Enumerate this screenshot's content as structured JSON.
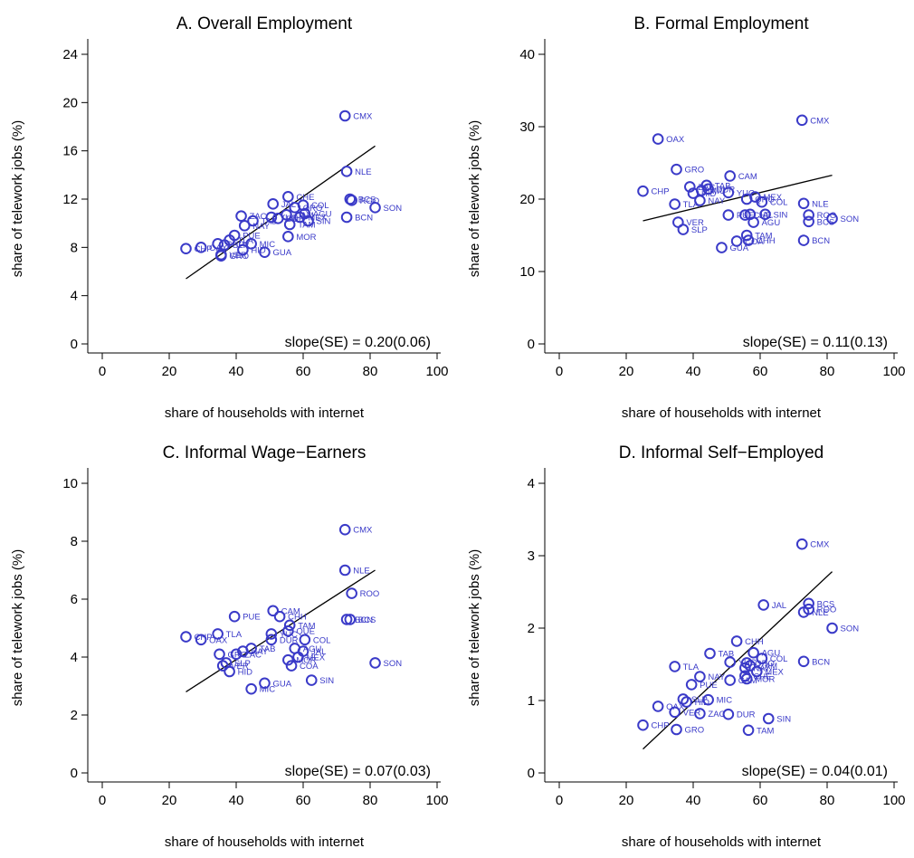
{
  "colors": {
    "marker": "#3a3ac8",
    "line": "#000000",
    "axis": "#000000"
  },
  "x_axis": {
    "label": "share of households with internet",
    "ticks": [
      0,
      20,
      40,
      60,
      80,
      100
    ],
    "lim": [
      0,
      100
    ]
  },
  "y_axis": {
    "label": "share of telework jobs (%)"
  },
  "chart_data": [
    {
      "type": "scatter",
      "title": "A. Overall Employment",
      "ylim": [
        0,
        24
      ],
      "yticks": [
        0,
        4,
        8,
        12,
        16,
        20,
        24
      ],
      "slope_text": "slope(SE) = 0.20(0.06)",
      "fit": {
        "x": [
          25,
          81.5
        ],
        "y": [
          5.4,
          16.4
        ]
      },
      "points": [
        {
          "x": 72.5,
          "y": 18.9,
          "label": "CMX"
        },
        {
          "x": 73.0,
          "y": 14.3,
          "label": "NLE"
        },
        {
          "x": 74.0,
          "y": 12.0,
          "label": "BCS"
        },
        {
          "x": 74.5,
          "y": 11.9,
          "label": "ROO"
        },
        {
          "x": 81.5,
          "y": 11.3,
          "label": "SON"
        },
        {
          "x": 73.0,
          "y": 10.5,
          "label": "BCN"
        },
        {
          "x": 55.5,
          "y": 12.2,
          "label": "CHE"
        },
        {
          "x": 60.0,
          "y": 11.5,
          "label": "COL"
        },
        {
          "x": 51.0,
          "y": 11.6,
          "label": "JAL"
        },
        {
          "x": 57.5,
          "y": 11.3,
          "label": "QRO"
        },
        {
          "x": 60.5,
          "y": 10.8,
          "label": "AGU"
        },
        {
          "x": 59.0,
          "y": 10.5,
          "label": "MEX"
        },
        {
          "x": 56.0,
          "y": 9.9,
          "label": "TAM"
        },
        {
          "x": 61.5,
          "y": 10.2,
          "label": "SIN"
        },
        {
          "x": 55.0,
          "y": 10.7,
          "label": "CAM"
        },
        {
          "x": 52.5,
          "y": 10.4,
          "label": "DUR"
        },
        {
          "x": 50.5,
          "y": 10.5,
          "label": "YUC"
        },
        {
          "x": 41.5,
          "y": 10.6,
          "label": "ZAC"
        },
        {
          "x": 45.0,
          "y": 10.2,
          "label": "TAB"
        },
        {
          "x": 42.5,
          "y": 9.8,
          "label": "NAY"
        },
        {
          "x": 39.5,
          "y": 9.0,
          "label": "PUE"
        },
        {
          "x": 44.5,
          "y": 8.3,
          "label": "MIC"
        },
        {
          "x": 55.5,
          "y": 8.9,
          "label": "MOR"
        },
        {
          "x": 38.0,
          "y": 8.6,
          "label": "TLA"
        },
        {
          "x": 36.5,
          "y": 8.2,
          "label": "SLP"
        },
        {
          "x": 42.0,
          "y": 7.8,
          "label": "HID"
        },
        {
          "x": 34.5,
          "y": 8.3,
          "label": "CHP"
        },
        {
          "x": 35.5,
          "y": 7.4,
          "label": "VER"
        },
        {
          "x": 35.5,
          "y": 7.3,
          "label": "GRO"
        },
        {
          "x": 48.5,
          "y": 7.6,
          "label": "GUA"
        },
        {
          "x": 29.5,
          "y": 8.0,
          "label": "OAX"
        },
        {
          "x": 25.0,
          "y": 7.9,
          "label": "CHP"
        }
      ]
    },
    {
      "type": "scatter",
      "title": "B. Formal Employment",
      "ylim": [
        0,
        40
      ],
      "yticks": [
        0,
        10,
        20,
        30,
        40
      ],
      "slope_text": "slope(SE) = 0.11(0.13)",
      "fit": {
        "x": [
          25,
          81.5
        ],
        "y": [
          17.0,
          23.3
        ]
      },
      "points": [
        {
          "x": 72.5,
          "y": 30.9,
          "label": "CMX"
        },
        {
          "x": 29.5,
          "y": 28.3,
          "label": "OAX"
        },
        {
          "x": 35.0,
          "y": 24.1,
          "label": "GRO"
        },
        {
          "x": 51.0,
          "y": 23.2,
          "label": "CAM"
        },
        {
          "x": 25.0,
          "y": 21.1,
          "label": "CHP"
        },
        {
          "x": 44.0,
          "y": 21.9,
          "label": "TAB"
        },
        {
          "x": 39.0,
          "y": 21.7,
          "label": "ZAC"
        },
        {
          "x": 44.5,
          "y": 21.4,
          "label": "DUR"
        },
        {
          "x": 40.0,
          "y": 20.8,
          "label": "HID"
        },
        {
          "x": 42.5,
          "y": 21.2,
          "label": "MIC"
        },
        {
          "x": 50.5,
          "y": 20.9,
          "label": "YUC"
        },
        {
          "x": 58.5,
          "y": 20.3,
          "label": "MEX"
        },
        {
          "x": 56.0,
          "y": 20.0,
          "label": "QRO"
        },
        {
          "x": 60.5,
          "y": 19.6,
          "label": "COL"
        },
        {
          "x": 34.5,
          "y": 19.3,
          "label": "TLA"
        },
        {
          "x": 42.0,
          "y": 19.8,
          "label": "NAY"
        },
        {
          "x": 73.0,
          "y": 19.4,
          "label": "NLE"
        },
        {
          "x": 74.5,
          "y": 17.8,
          "label": "ROO"
        },
        {
          "x": 81.5,
          "y": 17.3,
          "label": "SON"
        },
        {
          "x": 74.5,
          "y": 16.9,
          "label": "BCS"
        },
        {
          "x": 50.5,
          "y": 17.8,
          "label": "PUE"
        },
        {
          "x": 55.5,
          "y": 17.8,
          "label": "CHE"
        },
        {
          "x": 61.5,
          "y": 17.9,
          "label": "SIN"
        },
        {
          "x": 57.0,
          "y": 17.9,
          "label": "JAL"
        },
        {
          "x": 58.0,
          "y": 16.8,
          "label": "AGU"
        },
        {
          "x": 35.5,
          "y": 16.8,
          "label": "VER"
        },
        {
          "x": 37.0,
          "y": 15.8,
          "label": "SLP"
        },
        {
          "x": 56.0,
          "y": 15.0,
          "label": "TAM"
        },
        {
          "x": 56.5,
          "y": 14.3,
          "label": "CHH"
        },
        {
          "x": 53.0,
          "y": 14.2,
          "label": "COA"
        },
        {
          "x": 73.0,
          "y": 14.3,
          "label": "BCN"
        },
        {
          "x": 48.5,
          "y": 13.3,
          "label": "GUA"
        }
      ]
    },
    {
      "type": "scatter",
      "title": "C. Informal Wage−Earners",
      "ylim": [
        0,
        10
      ],
      "yticks": [
        0,
        2,
        4,
        6,
        8,
        10
      ],
      "slope_text": "slope(SE) = 0.07(0.03)",
      "fit": {
        "x": [
          25,
          81.5
        ],
        "y": [
          2.8,
          7.0
        ]
      },
      "points": [
        {
          "x": 72.5,
          "y": 8.4,
          "label": "CMX"
        },
        {
          "x": 72.5,
          "y": 7.0,
          "label": "NLE"
        },
        {
          "x": 74.5,
          "y": 6.2,
          "label": "ROO"
        },
        {
          "x": 74.0,
          "y": 5.3,
          "label": "BCS"
        },
        {
          "x": 73.0,
          "y": 5.3,
          "label": "BCN"
        },
        {
          "x": 81.5,
          "y": 3.8,
          "label": "SON"
        },
        {
          "x": 51.0,
          "y": 5.6,
          "label": "CAM"
        },
        {
          "x": 53.0,
          "y": 5.4,
          "label": "CHH"
        },
        {
          "x": 39.5,
          "y": 5.4,
          "label": "PUE"
        },
        {
          "x": 56.0,
          "y": 5.1,
          "label": "TAM"
        },
        {
          "x": 55.5,
          "y": 4.9,
          "label": "QUE"
        },
        {
          "x": 50.5,
          "y": 4.8,
          "label": "YUC"
        },
        {
          "x": 34.5,
          "y": 4.8,
          "label": "TLA"
        },
        {
          "x": 25.0,
          "y": 4.7,
          "label": "CHP"
        },
        {
          "x": 29.5,
          "y": 4.6,
          "label": "OAX"
        },
        {
          "x": 60.5,
          "y": 4.6,
          "label": "COL"
        },
        {
          "x": 50.5,
          "y": 4.6,
          "label": "DUR"
        },
        {
          "x": 57.5,
          "y": 4.3,
          "label": "AGU"
        },
        {
          "x": 60.0,
          "y": 4.2,
          "label": "JAL"
        },
        {
          "x": 58.5,
          "y": 4.0,
          "label": "MEX"
        },
        {
          "x": 55.5,
          "y": 3.9,
          "label": "MOR"
        },
        {
          "x": 44.5,
          "y": 4.3,
          "label": "TAB"
        },
        {
          "x": 42.0,
          "y": 4.2,
          "label": "NAY"
        },
        {
          "x": 40.0,
          "y": 4.1,
          "label": "ZAC"
        },
        {
          "x": 35.0,
          "y": 4.1,
          "label": "GRO"
        },
        {
          "x": 37.0,
          "y": 3.8,
          "label": "SLP"
        },
        {
          "x": 36.0,
          "y": 3.7,
          "label": "VER"
        },
        {
          "x": 38.0,
          "y": 3.5,
          "label": "HID"
        },
        {
          "x": 56.5,
          "y": 3.7,
          "label": "COA"
        },
        {
          "x": 62.5,
          "y": 3.2,
          "label": "SIN"
        },
        {
          "x": 48.5,
          "y": 3.1,
          "label": "GUA"
        },
        {
          "x": 44.5,
          "y": 2.9,
          "label": "MIC"
        }
      ]
    },
    {
      "type": "scatter",
      "title": "D. Informal Self−Employed",
      "ylim": [
        0,
        4
      ],
      "yticks": [
        0,
        1,
        2,
        3,
        4
      ],
      "slope_text": "slope(SE) = 0.04(0.01)",
      "fit": {
        "x": [
          25,
          81.5
        ],
        "y": [
          0.33,
          2.78
        ]
      },
      "points": [
        {
          "x": 72.5,
          "y": 3.16,
          "label": "CMX"
        },
        {
          "x": 61.0,
          "y": 2.32,
          "label": "JAL"
        },
        {
          "x": 74.5,
          "y": 2.34,
          "label": "BCS"
        },
        {
          "x": 74.5,
          "y": 2.26,
          "label": "ROO"
        },
        {
          "x": 73.0,
          "y": 2.22,
          "label": "NLE"
        },
        {
          "x": 81.5,
          "y": 2.0,
          "label": "SON"
        },
        {
          "x": 53.0,
          "y": 1.82,
          "label": "CHH"
        },
        {
          "x": 58.0,
          "y": 1.66,
          "label": "AGU"
        },
        {
          "x": 45.0,
          "y": 1.65,
          "label": "TAB"
        },
        {
          "x": 60.5,
          "y": 1.58,
          "label": "COL"
        },
        {
          "x": 73.0,
          "y": 1.54,
          "label": "BCN"
        },
        {
          "x": 51.0,
          "y": 1.53,
          "label": "YUC"
        },
        {
          "x": 56.0,
          "y": 1.52,
          "label": "QRO"
        },
        {
          "x": 57.0,
          "y": 1.48,
          "label": "CAM"
        },
        {
          "x": 34.5,
          "y": 1.47,
          "label": "TLA"
        },
        {
          "x": 55.5,
          "y": 1.45,
          "label": "NAY"
        },
        {
          "x": 59.0,
          "y": 1.4,
          "label": "MEX"
        },
        {
          "x": 55.5,
          "y": 1.34,
          "label": "CHE"
        },
        {
          "x": 42.0,
          "y": 1.33,
          "label": "NAY"
        },
        {
          "x": 56.0,
          "y": 1.3,
          "label": "MOR"
        },
        {
          "x": 51.0,
          "y": 1.28,
          "label": "CAM"
        },
        {
          "x": 39.5,
          "y": 1.22,
          "label": "PUE"
        },
        {
          "x": 37.0,
          "y": 1.02,
          "label": "SLP"
        },
        {
          "x": 44.5,
          "y": 1.01,
          "label": "MIC"
        },
        {
          "x": 29.5,
          "y": 0.92,
          "label": "OAX"
        },
        {
          "x": 38.0,
          "y": 0.98,
          "label": "HID"
        },
        {
          "x": 34.5,
          "y": 0.84,
          "label": "VER"
        },
        {
          "x": 42.0,
          "y": 0.82,
          "label": "ZAC"
        },
        {
          "x": 50.5,
          "y": 0.81,
          "label": "DUR"
        },
        {
          "x": 62.5,
          "y": 0.75,
          "label": "SIN"
        },
        {
          "x": 25.0,
          "y": 0.66,
          "label": "CHP"
        },
        {
          "x": 35.0,
          "y": 0.6,
          "label": "GRO"
        },
        {
          "x": 56.5,
          "y": 0.59,
          "label": "TAM"
        }
      ]
    }
  ]
}
